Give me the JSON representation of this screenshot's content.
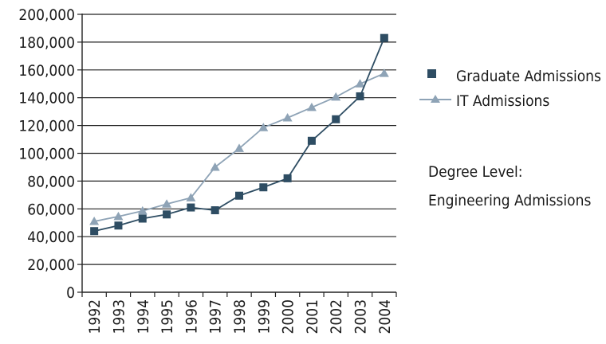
{
  "chart_data": {
    "type": "line",
    "categories": [
      "1992",
      "1993",
      "1994",
      "1995",
      "1996",
      "1997",
      "1998",
      "1999",
      "2000",
      "2001",
      "2002",
      "2003",
      "2004"
    ],
    "ylim": [
      0,
      200000
    ],
    "yticks": [
      0,
      20000,
      40000,
      60000,
      80000,
      100000,
      120000,
      140000,
      160000,
      180000,
      200000
    ],
    "ytick_labels": [
      "0",
      "20,000",
      "40,000",
      "60,000",
      "80,000",
      "100,000",
      "120,000",
      "140,000",
      "160,000",
      "180,000",
      "200,000"
    ],
    "grid": "horizontal",
    "legend_position": "right",
    "series": [
      {
        "name": "Graduate Admissions",
        "marker": "square",
        "color": "#2e4d63",
        "values": [
          44000,
          48000,
          53000,
          56000,
          61000,
          59000,
          69500,
          75500,
          82000,
          109000,
          124500,
          141000,
          183000
        ]
      },
      {
        "name": "IT Admissions",
        "marker": "triangle",
        "color": "#8ea3b6",
        "values": [
          51000,
          54500,
          58500,
          63500,
          68000,
          90000,
          103500,
          118500,
          125500,
          133000,
          140500,
          150000,
          157500
        ]
      }
    ],
    "annotation": {
      "line1": "Degree Level:",
      "line2": "Engineering Admissions"
    }
  }
}
